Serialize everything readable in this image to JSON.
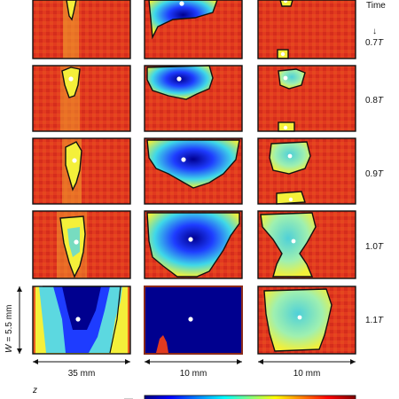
{
  "header": {
    "time_label": "Time",
    "arrow": "↓"
  },
  "rows": [
    {
      "label": "0.7",
      "unit": "T"
    },
    {
      "label": "0.8",
      "unit": "T"
    },
    {
      "label": "0.9",
      "unit": "T"
    },
    {
      "label": "1.0",
      "unit": "T"
    },
    {
      "label": "1.1",
      "unit": "T"
    }
  ],
  "columns": [
    {
      "width_label": "35 mm"
    },
    {
      "width_label": "10 mm"
    },
    {
      "width_label": "10 mm"
    }
  ],
  "height_label": {
    "prefix": "W",
    "value": "= 5.5 mm"
  },
  "colorbar": {
    "axis_symbol": "z",
    "stops": [
      "#00007f",
      "#0000ff",
      "#00ffff",
      "#ffff00",
      "#ff0000",
      "#7f0000"
    ]
  },
  "colors": {
    "field_bg": "#e23a1f",
    "contour": "#111111",
    "marker": "#ffffff"
  }
}
